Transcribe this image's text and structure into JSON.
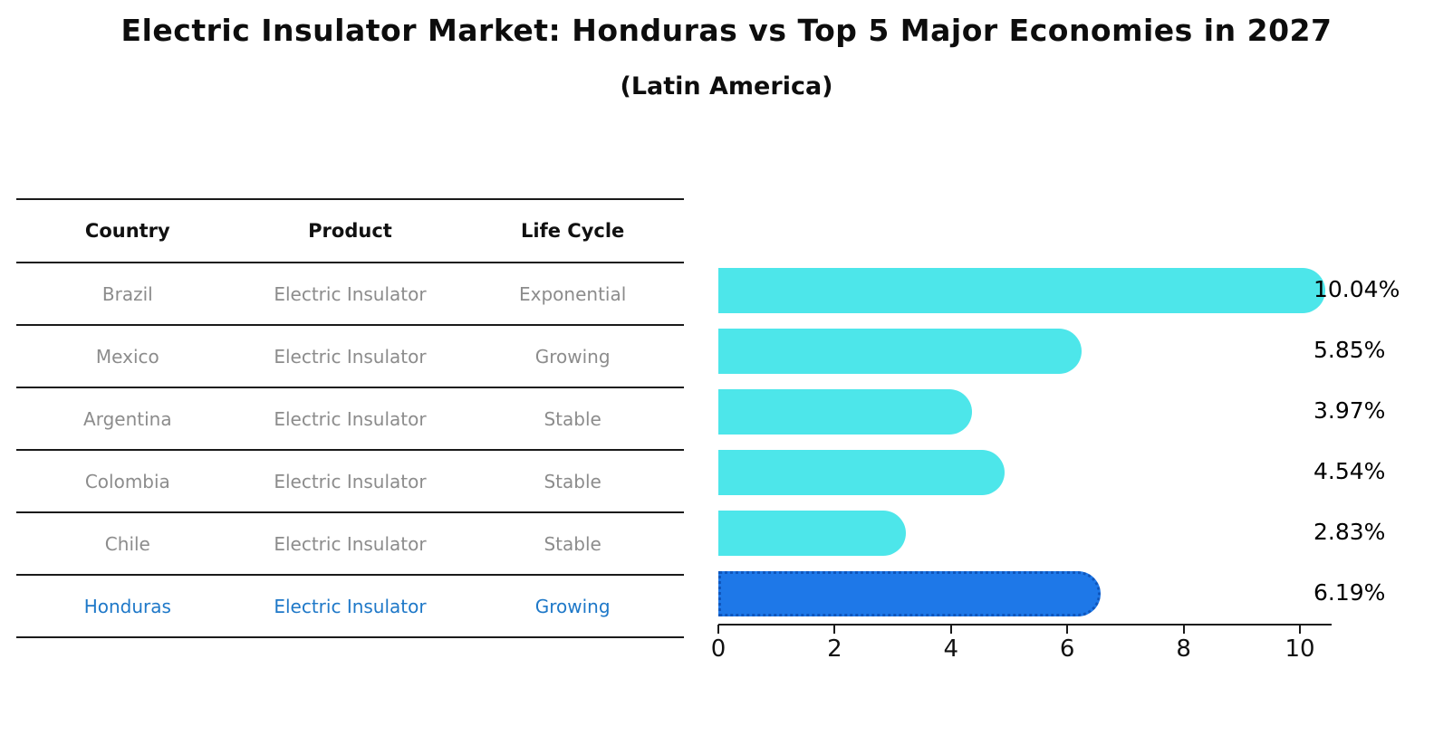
{
  "title": "Electric Insulator Market: Honduras vs Top 5 Major Economies in 2027",
  "subtitle": "(Latin America)",
  "table": {
    "headers": [
      "Country",
      "Product",
      "Life Cycle"
    ],
    "rows": [
      {
        "country": "Brazil",
        "product": "Electric Insulator",
        "life_cycle": "Exponential",
        "highlight": false
      },
      {
        "country": "Mexico",
        "product": "Electric Insulator",
        "life_cycle": "Growing",
        "highlight": false
      },
      {
        "country": "Argentina",
        "product": "Electric Insulator",
        "life_cycle": "Stable",
        "highlight": false
      },
      {
        "country": "Colombia",
        "product": "Electric Insulator",
        "life_cycle": "Stable",
        "highlight": false
      },
      {
        "country": "Chile",
        "product": "Electric Insulator",
        "life_cycle": "Stable",
        "highlight": false
      },
      {
        "country": "Honduras",
        "product": "Electric Insulator",
        "life_cycle": "Growing",
        "highlight": true
      }
    ]
  },
  "chart_data": {
    "type": "bar",
    "orientation": "horizontal",
    "title": "Electric Insulator Market: Honduras vs Top 5 Major Economies in 2027",
    "subtitle": "(Latin America)",
    "categories": [
      "Brazil",
      "Mexico",
      "Argentina",
      "Colombia",
      "Chile",
      "Honduras"
    ],
    "values": [
      10.04,
      5.85,
      3.97,
      4.54,
      2.83,
      6.19
    ],
    "value_labels": [
      "10.04%",
      "5.85%",
      "3.97%",
      "4.54%",
      "2.83%",
      "6.19%"
    ],
    "xticks": [
      "0",
      "2",
      "4",
      "6",
      "8",
      "10"
    ],
    "xtick_values": [
      0,
      2,
      4,
      6,
      8,
      10
    ],
    "xlim": [
      0,
      10.55
    ],
    "grid": false,
    "legend": false,
    "bar_color": "#4DE6EA",
    "highlight_bar_color": "#1E78E8",
    "highlight_border_color": "#1A5FC8",
    "highlight_text_color": "#1E78C8",
    "highlight_index": 5
  }
}
